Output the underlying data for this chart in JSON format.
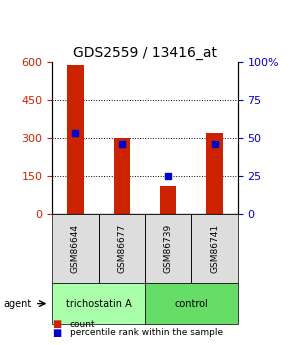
{
  "title": "GDS2559 / 13416_at",
  "samples": [
    "GSM86644",
    "GSM86677",
    "GSM86739",
    "GSM86741"
  ],
  "counts": [
    590,
    300,
    110,
    320
  ],
  "percentile_ranks": [
    53,
    46,
    25,
    46
  ],
  "ylim_left": [
    0,
    600
  ],
  "ylim_right": [
    0,
    100
  ],
  "yticks_left": [
    0,
    150,
    300,
    450,
    600
  ],
  "yticks_right": [
    0,
    25,
    50,
    75,
    100
  ],
  "ytick_labels_right": [
    "0",
    "25",
    "50",
    "75",
    "100%"
  ],
  "bar_color": "#cc2200",
  "percentile_color": "#0000cc",
  "grid_color": "#000000",
  "agent_groups": [
    {
      "label": "trichostatin A",
      "samples": [
        0,
        1
      ],
      "color": "#aaffaa"
    },
    {
      "label": "control",
      "samples": [
        2,
        3
      ],
      "color": "#66dd66"
    }
  ],
  "legend_count_color": "#cc2200",
  "legend_pct_color": "#0000cc",
  "bar_width": 0.35,
  "sample_box_color": "#dddddd",
  "title_fontsize": 10,
  "tick_fontsize": 8,
  "label_fontsize": 8
}
